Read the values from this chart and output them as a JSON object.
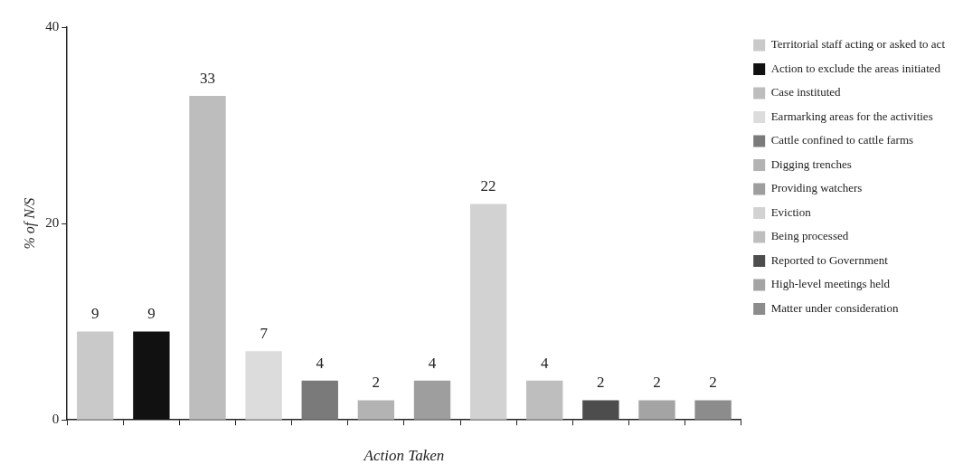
{
  "chart_data": {
    "type": "bar",
    "xlabel": "Action Taken",
    "ylabel": "% of N/S",
    "categories": [
      null,
      null,
      null,
      null,
      null,
      null,
      null,
      null,
      null,
      null,
      null,
      null
    ],
    "series": [
      {
        "name": "Territorial staff acting or asked to act",
        "color": "#c9c9c9",
        "values": [
          9,
          null,
          null,
          null,
          null,
          null,
          null,
          null,
          null,
          null,
          null,
          null
        ]
      },
      {
        "name": "Action to exclude the areas initiated",
        "color": "#111111",
        "values": [
          null,
          9,
          null,
          null,
          null,
          null,
          null,
          null,
          null,
          null,
          null,
          null
        ]
      },
      {
        "name": "Case instituted",
        "color": "#bdbdbd",
        "values": [
          null,
          null,
          33,
          null,
          null,
          null,
          null,
          null,
          null,
          null,
          null,
          null
        ]
      },
      {
        "name": "Earmarking areas for the activities",
        "color": "#dcdcdc",
        "values": [
          null,
          null,
          null,
          7,
          null,
          null,
          null,
          null,
          null,
          null,
          null,
          null
        ]
      },
      {
        "name": "Cattle confined to cattle farms",
        "color": "#7a7a7a",
        "values": [
          null,
          null,
          null,
          null,
          4,
          null,
          null,
          null,
          null,
          null,
          null,
          null
        ]
      },
      {
        "name": "Digging trenches",
        "color": "#b3b3b3",
        "values": [
          null,
          null,
          null,
          null,
          null,
          2,
          null,
          null,
          null,
          null,
          null,
          null
        ]
      },
      {
        "name": "Providing watchers",
        "color": "#9e9e9e",
        "values": [
          null,
          null,
          null,
          null,
          null,
          null,
          4,
          null,
          null,
          null,
          null,
          null
        ]
      },
      {
        "name": "Eviction",
        "color": "#d2d2d2",
        "values": [
          null,
          null,
          null,
          null,
          null,
          null,
          null,
          22,
          null,
          null,
          null,
          null
        ]
      },
      {
        "name": "Being processed",
        "color": "#bebebe",
        "values": [
          null,
          null,
          null,
          null,
          null,
          null,
          null,
          null,
          4,
          null,
          null,
          null
        ]
      },
      {
        "name": "Reported to Government",
        "color": "#4d4d4d",
        "values": [
          null,
          null,
          null,
          null,
          null,
          null,
          null,
          null,
          null,
          2,
          null,
          null
        ]
      },
      {
        "name": "High-level meetings held",
        "color": "#a4a4a4",
        "values": [
          null,
          null,
          null,
          null,
          null,
          null,
          null,
          null,
          null,
          null,
          2,
          null
        ]
      },
      {
        "name": "Matter under consideration",
        "color": "#8c8c8c",
        "values": [
          null,
          null,
          null,
          null,
          null,
          null,
          null,
          null,
          null,
          null,
          null,
          2
        ]
      }
    ],
    "ylim": [
      0,
      40
    ],
    "yticks": [
      0,
      20,
      40
    ],
    "grid": false,
    "legend": "right",
    "data_labels": true
  }
}
